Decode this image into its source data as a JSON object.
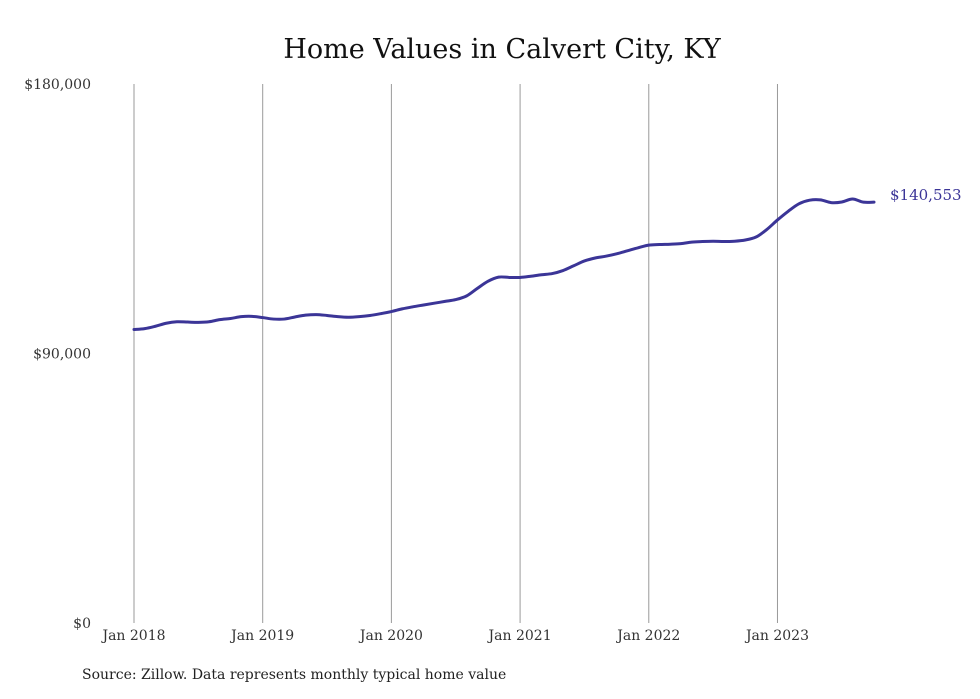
{
  "chart_data": {
    "type": "line",
    "title": "Home Values in Calvert City, KY",
    "xlabel": "",
    "ylabel": "",
    "ylim": [
      0,
      180000
    ],
    "yticks": [
      0,
      90000,
      180000
    ],
    "ytick_labels": [
      "$0",
      "$90,000",
      "$180,000"
    ],
    "xticks": [
      "2018-01",
      "2019-01",
      "2020-01",
      "2021-01",
      "2022-01",
      "2023-01"
    ],
    "xtick_labels": [
      "Jan 2018",
      "Jan 2019",
      "Jan 2020",
      "Jan 2021",
      "Jan 2022",
      "Jan 2023"
    ],
    "xlim": [
      "2018-01",
      "2023-10"
    ],
    "grid": {
      "vertical": true,
      "horizontal": false
    },
    "line_color": "#3b3597",
    "end_label": "$140,553",
    "series": [
      {
        "x": [
          "2018-01",
          "2018-02",
          "2018-03",
          "2018-04",
          "2018-05",
          "2018-06",
          "2018-07",
          "2018-08",
          "2018-09",
          "2018-10",
          "2018-11",
          "2018-12",
          "2019-01",
          "2019-02",
          "2019-03",
          "2019-04",
          "2019-05",
          "2019-06",
          "2019-07",
          "2019-08",
          "2019-09",
          "2019-10",
          "2019-11",
          "2019-12",
          "2020-01",
          "2020-02",
          "2020-03",
          "2020-04",
          "2020-05",
          "2020-06",
          "2020-07",
          "2020-08",
          "2020-09",
          "2020-10",
          "2020-11",
          "2020-12",
          "2021-01",
          "2021-02",
          "2021-03",
          "2021-04",
          "2021-05",
          "2021-06",
          "2021-07",
          "2021-08",
          "2021-09",
          "2021-10",
          "2021-11",
          "2021-12",
          "2022-01",
          "2022-02",
          "2022-03",
          "2022-04",
          "2022-05",
          "2022-06",
          "2022-07",
          "2022-08",
          "2022-09",
          "2022-10",
          "2022-11",
          "2022-12",
          "2023-01",
          "2023-02",
          "2023-03",
          "2023-04",
          "2023-05",
          "2023-06",
          "2023-07",
          "2023-08",
          "2023-09",
          "2023-10"
        ],
        "values": [
          98000,
          98300,
          99100,
          100100,
          100600,
          100500,
          100400,
          100600,
          101300,
          101700,
          102300,
          102400,
          102000,
          101500,
          101500,
          102200,
          102800,
          103000,
          102700,
          102300,
          102100,
          102300,
          102700,
          103300,
          104000,
          104900,
          105600,
          106200,
          106800,
          107400,
          108000,
          109200,
          111700,
          114100,
          115500,
          115400,
          115400,
          115800,
          116300,
          116700,
          117700,
          119300,
          120900,
          121900,
          122500,
          123300,
          124300,
          125300,
          126200,
          126400,
          126500,
          126700,
          127200,
          127400,
          127500,
          127400,
          127500,
          127900,
          128900,
          131400,
          134600,
          137500,
          140000,
          141200,
          141300,
          140400,
          140600,
          141600,
          140553,
          140553
        ]
      }
    ]
  },
  "source": "Source: Zillow. Data represents monthly typical home value"
}
